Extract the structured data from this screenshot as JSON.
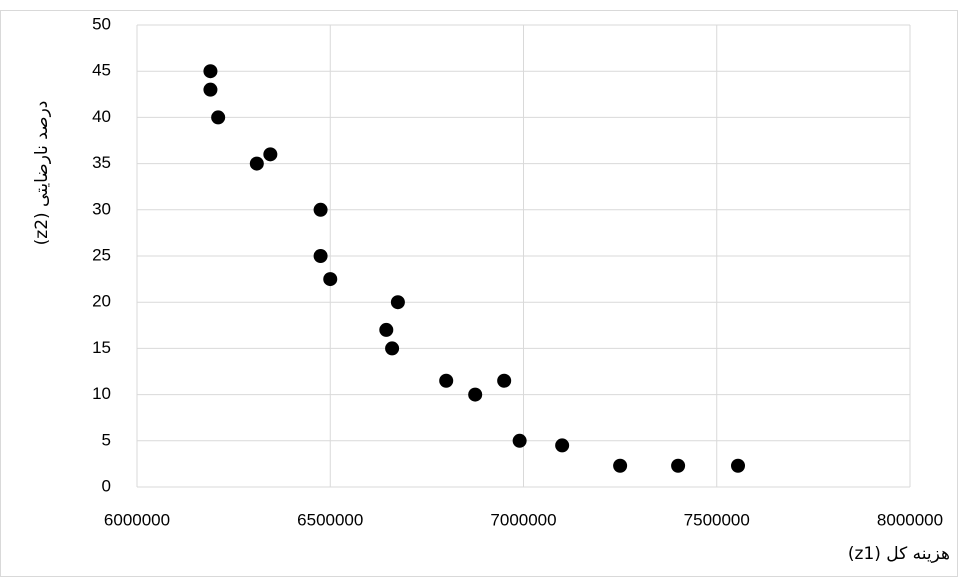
{
  "chart_data": {
    "type": "scatter",
    "xlabel": "هزینه کل (z1)",
    "ylabel": "درصد نارضایتی (z2)",
    "x": [
      6190000,
      6190000,
      6210000,
      6310000,
      6345000,
      6475000,
      6475000,
      6500000,
      6675000,
      6645000,
      6660000,
      6800000,
      6875000,
      6950000,
      6990000,
      7100000,
      7250000,
      7400000,
      7555000
    ],
    "values": [
      45,
      43,
      40,
      35,
      36,
      30,
      25,
      22.5,
      20,
      17,
      15,
      11.5,
      10,
      11.5,
      5,
      4.5,
      2.3,
      2.3,
      2.3
    ],
    "color": "#000000",
    "xlim": [
      6000000,
      8000000
    ],
    "xticks": [
      6000000,
      6500000,
      7000000,
      7500000,
      8000000
    ],
    "ylim": [
      0,
      50
    ],
    "yticks": [
      0,
      5,
      10,
      15,
      20,
      25,
      30,
      35,
      40,
      45,
      50
    ],
    "grid": true
  }
}
